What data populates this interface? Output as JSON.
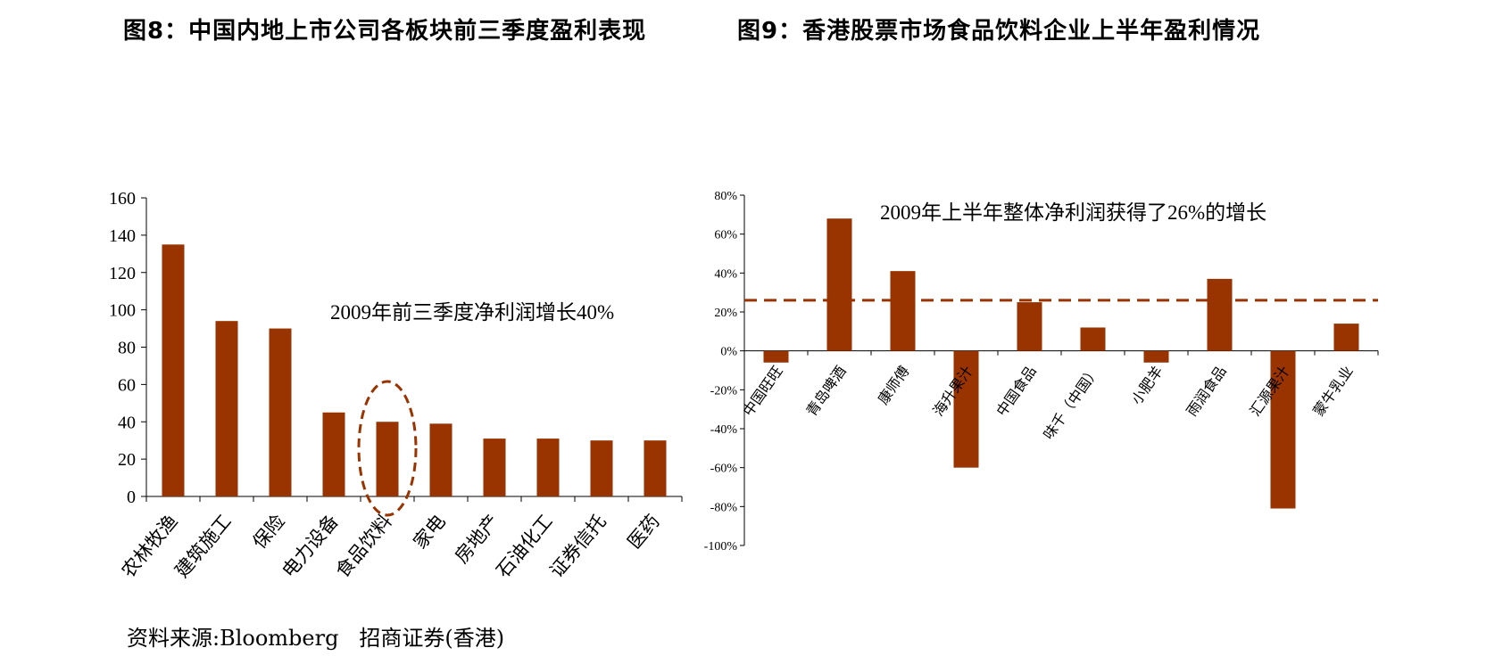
{
  "titles": {
    "left": "图8：中国内地上市公司各板块前三季度盈利表现",
    "right": "图9：香港股票市场食品饮料企业上半年盈利情况"
  },
  "source": "资料来源:Bloomberg   招商证券(香港)",
  "colors": {
    "bar": "#993300",
    "marker": "#993300",
    "axis": "#000000"
  },
  "chart_data": [
    {
      "type": "bar",
      "title": "图8：中国内地上市公司各板块前三季度盈利表现",
      "categories": [
        "农林牧渔",
        "建筑施工",
        "保险",
        "电力设备",
        "食品饮料",
        "家电",
        "房地产",
        "石油化工",
        "证券信托",
        "医药"
      ],
      "values": [
        135,
        94,
        90,
        45,
        40,
        39,
        31,
        31,
        30,
        30
      ],
      "ylim": [
        0,
        160
      ],
      "yticks": [
        "0",
        "20",
        "40",
        "60",
        "80",
        "100",
        "120",
        "140",
        "160"
      ],
      "annotation": "2009年前三季度净利润增长40%",
      "highlight_category": "食品饮料",
      "grid": false
    },
    {
      "type": "bar",
      "title": "图9：香港股票市场食品饮料企业上半年盈利情况",
      "categories": [
        "中国旺旺",
        "青岛啤酒",
        "康师傅",
        "海升果汁",
        "中国食品",
        "味千（中国）",
        "小肥羊",
        "雨润食品",
        "汇源果汁",
        "蒙牛乳业"
      ],
      "values": [
        -6,
        68,
        41,
        -60,
        25,
        12,
        -6,
        37,
        -81,
        14
      ],
      "ylim": [
        -100,
        80
      ],
      "yticks": [
        "80%",
        "60%",
        "40%",
        "20%",
        "0%",
        "-20%",
        "-40%",
        "-60%",
        "-80%",
        "-100%"
      ],
      "reference_line": 26,
      "annotation": "2009年上半年整体净利润获得了26%的增长",
      "grid": false
    }
  ]
}
